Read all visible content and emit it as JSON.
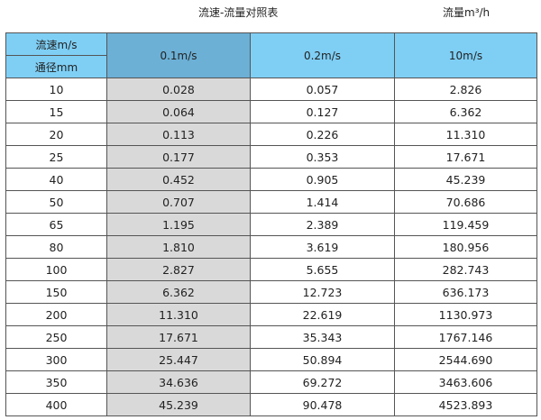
{
  "title": "流速-流量对照表",
  "unit": "流量m³/h",
  "header": {
    "velocity_label": "流速m/s",
    "diameter_label": "通径mm",
    "columns": [
      "0.1m/s",
      "0.2m/s",
      "10m/s"
    ]
  },
  "colors": {
    "header": "#7fcff5",
    "header_selected": "#6cb0d6",
    "column_highlight": "#d9d9d9"
  },
  "rows": [
    [
      "10",
      "0.028",
      "0.057",
      "2.826"
    ],
    [
      "15",
      "0.064",
      "0.127",
      "6.362"
    ],
    [
      "20",
      "0.113",
      "0.226",
      "11.310"
    ],
    [
      "25",
      "0.177",
      "0.353",
      "17.671"
    ],
    [
      "40",
      "0.452",
      "0.905",
      "45.239"
    ],
    [
      "50",
      "0.707",
      "1.414",
      "70.686"
    ],
    [
      "65",
      "1.195",
      "2.389",
      "119.459"
    ],
    [
      "80",
      "1.810",
      "3.619",
      "180.956"
    ],
    [
      "100",
      "2.827",
      "5.655",
      "282.743"
    ],
    [
      "150",
      "6.362",
      "12.723",
      "636.173"
    ],
    [
      "200",
      "11.310",
      "22.619",
      "1130.973"
    ],
    [
      "250",
      "17.671",
      "35.343",
      "1767.146"
    ],
    [
      "300",
      "25.447",
      "50.894",
      "2544.690"
    ],
    [
      "350",
      "34.636",
      "69.272",
      "3463.606"
    ],
    [
      "400",
      "45.239",
      "90.478",
      "4523.893"
    ]
  ]
}
